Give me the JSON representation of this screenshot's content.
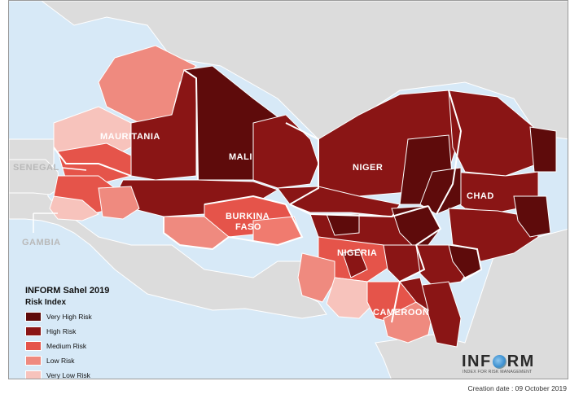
{
  "colors": {
    "sea": "#d7e9f7",
    "outside_land": "#dcdcdc",
    "border": "#ffffff",
    "very_high": "#5e0b0b",
    "high": "#8a1515",
    "medium": "#e5544a",
    "low": "#ef8a7f",
    "very_low": "#f7c3bc"
  },
  "map": {
    "country_labels": {
      "mauritania": "MAURITANIA",
      "mali": "MALI",
      "niger": "NIGER",
      "chad": "CHAD",
      "burkina_faso_line1": "BURKINA",
      "burkina_faso_line2": "FASO",
      "nigeria": "NIGERIA",
      "cameroon": "CAMEROON"
    },
    "outside_labels": {
      "senegal": "SENEGAL",
      "gambia": "GAMBIA"
    }
  },
  "legend": {
    "title": "INFORM Sahel 2019",
    "subtitle": "Risk Index",
    "items": [
      {
        "label": "Very High Risk",
        "color": "#5e0b0b"
      },
      {
        "label": "High Risk",
        "color": "#8a1515"
      },
      {
        "label": "Medium Risk",
        "color": "#e5544a"
      },
      {
        "label": "Low Risk",
        "color": "#ef8a7f"
      },
      {
        "label": "Very Low Risk",
        "color": "#f7c3bc"
      }
    ]
  },
  "logo": {
    "word_left": "INF",
    "word_right": "RM",
    "subtitle": "INDEX FOR RISK MANAGEMENT"
  },
  "footer": {
    "creation_date": "Creation date : 09 October 2019"
  }
}
